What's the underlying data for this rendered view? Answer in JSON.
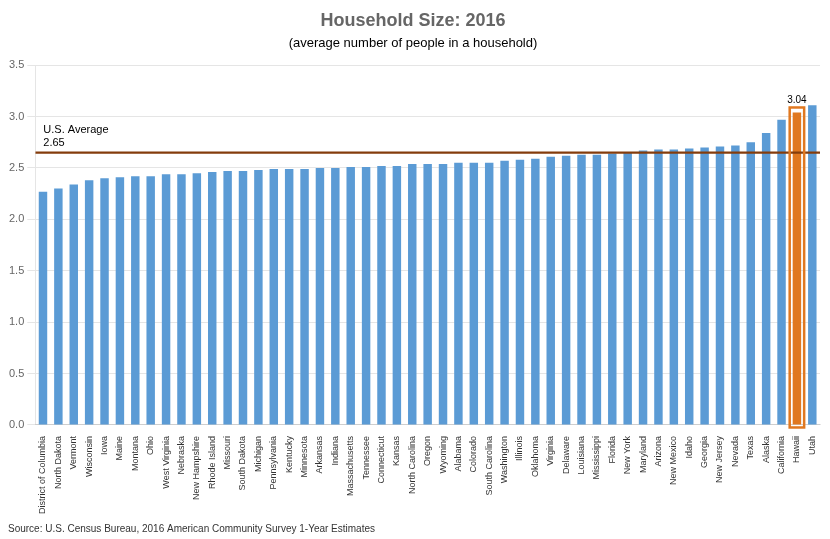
{
  "chart_data": {
    "type": "bar",
    "title": "Household Size: 2016",
    "subtitle": "(average number of people in a household)",
    "source": "Source: U.S. Census Bureau, 2016 American Community Survey 1-Year Estimates",
    "categories": [
      "District of Columbia",
      "North Dakota",
      "Vermont",
      "Wisconsin",
      "Iowa",
      "Maine",
      "Montana",
      "Ohio",
      "West Virginia",
      "Nebraska",
      "New Hampshire",
      "Rhode Island",
      "Missouri",
      "South Dakota",
      "Michigan",
      "Pennsylvania",
      "Kentucky",
      "Minnesota",
      "Arkansas",
      "Indiana",
      "Massachusetts",
      "Tennessee",
      "Connecticut",
      "Kansas",
      "North Carolina",
      "Oregon",
      "Wyoming",
      "Alabama",
      "Colorado",
      "South Carolina",
      "Washington",
      "Illinois",
      "Oklahoma",
      "Virginia",
      "Delaware",
      "Louisiana",
      "Mississippi",
      "Florida",
      "New York",
      "Maryland",
      "Arizona",
      "New Mexico",
      "Idaho",
      "Georgia",
      "New Jersey",
      "Nevada",
      "Texas",
      "Alaska",
      "California",
      "Hawaii",
      "Utah"
    ],
    "values": [
      2.27,
      2.3,
      2.34,
      2.38,
      2.4,
      2.41,
      2.42,
      2.42,
      2.44,
      2.44,
      2.45,
      2.46,
      2.47,
      2.47,
      2.48,
      2.49,
      2.49,
      2.49,
      2.5,
      2.5,
      2.51,
      2.51,
      2.52,
      2.52,
      2.54,
      2.54,
      2.54,
      2.55,
      2.55,
      2.55,
      2.57,
      2.58,
      2.59,
      2.61,
      2.62,
      2.63,
      2.63,
      2.64,
      2.65,
      2.67,
      2.68,
      2.68,
      2.69,
      2.7,
      2.71,
      2.72,
      2.75,
      2.84,
      2.97,
      3.04,
      3.11
    ],
    "value_labels": [
      null,
      null,
      null,
      null,
      null,
      null,
      null,
      null,
      null,
      null,
      null,
      null,
      null,
      null,
      null,
      null,
      null,
      null,
      null,
      null,
      null,
      null,
      null,
      null,
      null,
      null,
      null,
      null,
      null,
      null,
      null,
      null,
      null,
      null,
      null,
      null,
      null,
      null,
      null,
      null,
      null,
      null,
      null,
      null,
      null,
      null,
      null,
      null,
      null,
      "3.04",
      null
    ],
    "colors": [
      "#5B9BD5",
      "#5B9BD5",
      "#5B9BD5",
      "#5B9BD5",
      "#5B9BD5",
      "#5B9BD5",
      "#5B9BD5",
      "#5B9BD5",
      "#5B9BD5",
      "#5B9BD5",
      "#5B9BD5",
      "#5B9BD5",
      "#5B9BD5",
      "#5B9BD5",
      "#5B9BD5",
      "#5B9BD5",
      "#5B9BD5",
      "#5B9BD5",
      "#5B9BD5",
      "#5B9BD5",
      "#5B9BD5",
      "#5B9BD5",
      "#5B9BD5",
      "#5B9BD5",
      "#5B9BD5",
      "#5B9BD5",
      "#5B9BD5",
      "#5B9BD5",
      "#5B9BD5",
      "#5B9BD5",
      "#5B9BD5",
      "#5B9BD5",
      "#5B9BD5",
      "#5B9BD5",
      "#5B9BD5",
      "#5B9BD5",
      "#5B9BD5",
      "#5B9BD5",
      "#5B9BD5",
      "#5B9BD5",
      "#5B9BD5",
      "#5B9BD5",
      "#5B9BD5",
      "#5B9BD5",
      "#5B9BD5",
      "#5B9BD5",
      "#5B9BD5",
      "#5B9BD5",
      "#5B9BD5",
      "#E07820",
      "#5B9BD5"
    ],
    "reference_lines": [
      {
        "value": 2.65,
        "label": "U.S. Average\n2.65",
        "color": "#843C0C"
      }
    ],
    "ylim": [
      0,
      3.5
    ],
    "yticks": [
      {
        "value": 0.0,
        "label": "0.0"
      },
      {
        "value": 0.5,
        "label": "0.5"
      },
      {
        "value": 1.0,
        "label": "1.0"
      },
      {
        "value": 1.5,
        "label": "1.5"
      },
      {
        "value": 2.0,
        "label": "2.0"
      },
      {
        "value": 2.5,
        "label": "2.5"
      },
      {
        "value": 3.0,
        "label": "3.0"
      },
      {
        "value": 3.5,
        "label": "3.5"
      }
    ],
    "grid": true
  }
}
